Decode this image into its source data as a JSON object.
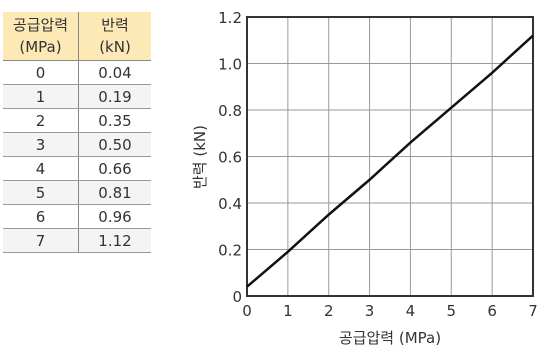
{
  "table": {
    "headers": [
      {
        "line1": "공급압력",
        "line2": "(MPa)"
      },
      {
        "line1": "반력",
        "line2": "(kN)"
      }
    ],
    "rows": [
      {
        "pressure": "0",
        "force": "0.04"
      },
      {
        "pressure": "1",
        "force": "0.19"
      },
      {
        "pressure": "2",
        "force": "0.35"
      },
      {
        "pressure": "3",
        "force": "0.50"
      },
      {
        "pressure": "4",
        "force": "0.66"
      },
      {
        "pressure": "5",
        "force": "0.81"
      },
      {
        "pressure": "6",
        "force": "0.96"
      },
      {
        "pressure": "7",
        "force": "1.12"
      }
    ]
  },
  "chart_data": {
    "type": "line",
    "title": "",
    "xlabel": "공급압력  (MPa)",
    "ylabel": "반력 (kN)",
    "xlim": [
      0,
      7
    ],
    "ylim": [
      0,
      1.2
    ],
    "xticks": [
      "0",
      "1",
      "2",
      "3",
      "4",
      "5",
      "6",
      "7"
    ],
    "yticks": [
      "0",
      "0.2",
      "0.4",
      "0.6",
      "0.8",
      "1.0",
      "1.2"
    ],
    "grid": true,
    "legend": "none",
    "series": [
      {
        "x": [
          0,
          1,
          2,
          3,
          4,
          5,
          6,
          7
        ],
        "y": [
          0.04,
          0.19,
          0.35,
          0.5,
          0.66,
          0.81,
          0.96,
          1.12
        ]
      }
    ]
  }
}
